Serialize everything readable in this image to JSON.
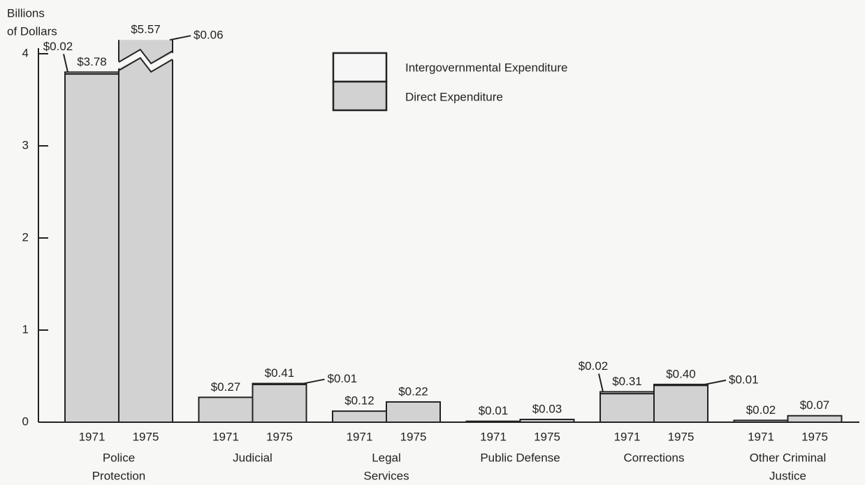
{
  "chart_data": {
    "type": "stacked_bar",
    "y_label": [
      "Billions",
      "of Dollars"
    ],
    "categories": [
      "1971",
      "1975",
      "1971",
      "1975",
      "1971",
      "1975",
      "1971",
      "1975",
      "1971",
      "1975",
      "1971",
      "1975"
    ],
    "group_labels": [
      [
        "Police",
        "Protection"
      ],
      [
        "Judicial"
      ],
      [
        "Legal",
        "Services"
      ],
      [
        "Public Defense"
      ],
      [
        "Corrections"
      ],
      [
        "Other Criminal",
        "Justice"
      ]
    ],
    "series": [
      {
        "name": "Direct Expenditure",
        "color": "#d2d2d2",
        "values": [
          3.78,
          5.57,
          0.27,
          0.41,
          0.12,
          0.22,
          0.01,
          0.03,
          0.31,
          0.4,
          0.02,
          0.07
        ],
        "value_labels": [
          "$3.78",
          "$5.57",
          "$0.27",
          "$0.41",
          "$0.12",
          "$0.22",
          "$0.01",
          "$0.03",
          "$0.31",
          "$0.40",
          "$0.02",
          "$0.07"
        ]
      },
      {
        "name": "Intergovernmental Expenditure",
        "color": "#f6f6f6",
        "values": [
          0.02,
          0.06,
          null,
          0.01,
          null,
          null,
          null,
          null,
          0.02,
          0.01,
          null,
          null
        ],
        "value_labels": [
          "$0.02",
          "$0.06",
          null,
          "$0.01",
          null,
          null,
          null,
          null,
          "$0.02",
          "$0.01",
          null,
          null
        ]
      }
    ],
    "ylim": [
      0,
      4.15
    ],
    "yticks": [
      0,
      1,
      2,
      3,
      4
    ],
    "axis_break": true
  }
}
